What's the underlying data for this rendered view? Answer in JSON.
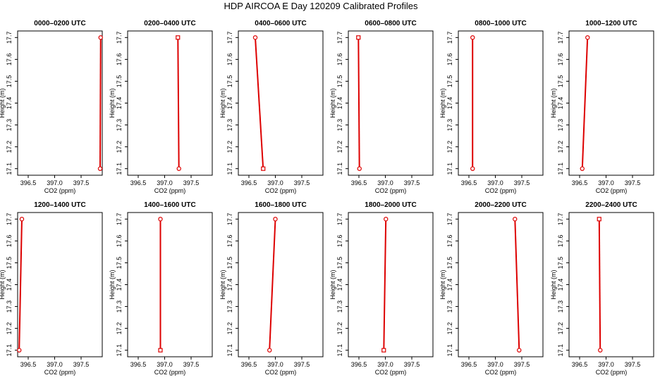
{
  "figure": {
    "title": "HDP AIRCOA E  Day 120209  Calibrated Profiles"
  },
  "colors": {
    "line": "#dd0000",
    "marker": "#dd0000",
    "frame": "#000000"
  },
  "chart_data": [
    {
      "type": "line",
      "title": "0000–0200 UTC",
      "xlabel": "CO2 (ppm)",
      "ylabel": "Height (m)",
      "x_ticks": [
        "396.5",
        "397.0",
        "397.5"
      ],
      "y_ticks": [
        "17.1",
        "17.2",
        "17.3",
        "17.4",
        "17.5",
        "17.6",
        "17.7"
      ],
      "xlim": [
        396.3,
        397.9
      ],
      "ylim": [
        17.07,
        17.73
      ],
      "series": [
        {
          "x": [
            397.86,
            397.87
          ],
          "y": [
            17.1,
            17.7
          ],
          "markers": [
            "circle",
            "circle"
          ]
        }
      ]
    },
    {
      "type": "line",
      "title": "0200–0400 UTC",
      "xlabel": "CO2 (ppm)",
      "ylabel": "Height (m)",
      "x_ticks": [
        "396.5",
        "397.0",
        "397.5"
      ],
      "y_ticks": [
        "17.1",
        "17.2",
        "17.3",
        "17.4",
        "17.5",
        "17.6",
        "17.7"
      ],
      "xlim": [
        396.3,
        397.9
      ],
      "ylim": [
        17.07,
        17.73
      ],
      "series": [
        {
          "x": [
            397.27,
            397.25
          ],
          "y": [
            17.1,
            17.7
          ],
          "markers": [
            "circle",
            "square"
          ]
        }
      ]
    },
    {
      "type": "line",
      "title": "0400–0600 UTC",
      "xlabel": "CO2 (ppm)",
      "ylabel": "Height (m)",
      "x_ticks": [
        "396.5",
        "397.0",
        "397.5"
      ],
      "y_ticks": [
        "17.1",
        "17.2",
        "17.3",
        "17.4",
        "17.5",
        "17.6",
        "17.7"
      ],
      "xlim": [
        396.3,
        397.9
      ],
      "ylim": [
        17.07,
        17.73
      ],
      "series": [
        {
          "x": [
            396.77,
            396.62
          ],
          "y": [
            17.1,
            17.7
          ],
          "markers": [
            "square",
            "circle"
          ]
        }
      ]
    },
    {
      "type": "line",
      "title": "0600–0800 UTC",
      "xlabel": "CO2 (ppm)",
      "ylabel": "Height (m)",
      "x_ticks": [
        "396.5",
        "397.0",
        "397.5"
      ],
      "y_ticks": [
        "17.1",
        "17.2",
        "17.3",
        "17.4",
        "17.5",
        "17.6",
        "17.7"
      ],
      "xlim": [
        396.3,
        397.9
      ],
      "ylim": [
        17.07,
        17.73
      ],
      "series": [
        {
          "x": [
            396.51,
            396.49
          ],
          "y": [
            17.1,
            17.7
          ],
          "markers": [
            "circle",
            "square"
          ]
        }
      ]
    },
    {
      "type": "line",
      "title": "0800–1000 UTC",
      "xlabel": "CO2 (ppm)",
      "ylabel": "Height (m)",
      "x_ticks": [
        "396.5",
        "397.0",
        "397.5"
      ],
      "y_ticks": [
        "17.1",
        "17.2",
        "17.3",
        "17.4",
        "17.5",
        "17.6",
        "17.7"
      ],
      "xlim": [
        396.3,
        397.9
      ],
      "ylim": [
        17.07,
        17.73
      ],
      "series": [
        {
          "x": [
            396.57,
            396.57
          ],
          "y": [
            17.1,
            17.7
          ],
          "markers": [
            "circle",
            "circle"
          ]
        }
      ]
    },
    {
      "type": "line",
      "title": "1000–1200 UTC",
      "xlabel": "CO2 (ppm)",
      "ylabel": "Height (m)",
      "x_ticks": [
        "396.5",
        "397.0",
        "397.5"
      ],
      "y_ticks": [
        "17.1",
        "17.2",
        "17.3",
        "17.4",
        "17.5",
        "17.6",
        "17.7"
      ],
      "xlim": [
        396.3,
        397.9
      ],
      "ylim": [
        17.07,
        17.73
      ],
      "series": [
        {
          "x": [
            396.55,
            396.65
          ],
          "y": [
            17.1,
            17.7
          ],
          "markers": [
            "circle",
            "circle"
          ]
        }
      ]
    },
    {
      "type": "line",
      "title": "1200–1400 UTC",
      "xlabel": "CO2 (ppm)",
      "ylabel": "Height (m)",
      "x_ticks": [
        "396.5",
        "397.0",
        "397.5"
      ],
      "y_ticks": [
        "17.1",
        "17.2",
        "17.3",
        "17.4",
        "17.5",
        "17.6",
        "17.7"
      ],
      "xlim": [
        396.3,
        397.9
      ],
      "ylim": [
        17.07,
        17.73
      ],
      "series": [
        {
          "x": [
            396.33,
            396.38
          ],
          "y": [
            17.1,
            17.7
          ],
          "markers": [
            "circle",
            "circle"
          ]
        }
      ]
    },
    {
      "type": "line",
      "title": "1400–1600 UTC",
      "xlabel": "CO2 (ppm)",
      "ylabel": "Height (m)",
      "x_ticks": [
        "396.5",
        "397.0",
        "397.5"
      ],
      "y_ticks": [
        "17.1",
        "17.2",
        "17.3",
        "17.4",
        "17.5",
        "17.6",
        "17.7"
      ],
      "xlim": [
        396.3,
        397.9
      ],
      "ylim": [
        17.07,
        17.73
      ],
      "series": [
        {
          "x": [
            396.92,
            396.92
          ],
          "y": [
            17.1,
            17.7
          ],
          "markers": [
            "square",
            "circle"
          ]
        }
      ]
    },
    {
      "type": "line",
      "title": "1600–1800 UTC",
      "xlabel": "CO2 (ppm)",
      "ylabel": "Height (m)",
      "x_ticks": [
        "396.5",
        "397.0",
        "397.5"
      ],
      "y_ticks": [
        "17.1",
        "17.2",
        "17.3",
        "17.4",
        "17.5",
        "17.6",
        "17.7"
      ],
      "xlim": [
        396.3,
        397.9
      ],
      "ylim": [
        17.07,
        17.73
      ],
      "series": [
        {
          "x": [
            396.89,
            397.0
          ],
          "y": [
            17.1,
            17.7
          ],
          "markers": [
            "circle",
            "circle"
          ]
        }
      ]
    },
    {
      "type": "line",
      "title": "1800–2000 UTC",
      "xlabel": "CO2 (ppm)",
      "ylabel": "Height (m)",
      "x_ticks": [
        "396.5",
        "397.0",
        "397.5"
      ],
      "y_ticks": [
        "17.1",
        "17.2",
        "17.3",
        "17.4",
        "17.5",
        "17.6",
        "17.7"
      ],
      "xlim": [
        396.3,
        397.9
      ],
      "ylim": [
        17.07,
        17.73
      ],
      "series": [
        {
          "x": [
            396.97,
            397.01
          ],
          "y": [
            17.1,
            17.7
          ],
          "markers": [
            "square",
            "circle"
          ]
        }
      ]
    },
    {
      "type": "line",
      "title": "2000–2200 UTC",
      "xlabel": "CO2 (ppm)",
      "ylabel": "Height (m)",
      "x_ticks": [
        "396.5",
        "397.0",
        "397.5"
      ],
      "y_ticks": [
        "17.1",
        "17.2",
        "17.3",
        "17.4",
        "17.5",
        "17.6",
        "17.7"
      ],
      "xlim": [
        396.3,
        397.9
      ],
      "ylim": [
        17.07,
        17.73
      ],
      "series": [
        {
          "x": [
            397.45,
            397.37
          ],
          "y": [
            17.1,
            17.7
          ],
          "markers": [
            "circle",
            "circle"
          ]
        }
      ]
    },
    {
      "type": "line",
      "title": "2200–2400 UTC",
      "xlabel": "CO2 (ppm)",
      "ylabel": "Height (m)",
      "x_ticks": [
        "396.5",
        "397.0",
        "397.5"
      ],
      "y_ticks": [
        "17.1",
        "17.2",
        "17.3",
        "17.4",
        "17.5",
        "17.6",
        "17.7"
      ],
      "xlim": [
        396.3,
        397.9
      ],
      "ylim": [
        17.07,
        17.73
      ],
      "series": [
        {
          "x": [
            396.89,
            396.87
          ],
          "y": [
            17.1,
            17.7
          ],
          "markers": [
            "circle",
            "square"
          ]
        }
      ]
    }
  ]
}
